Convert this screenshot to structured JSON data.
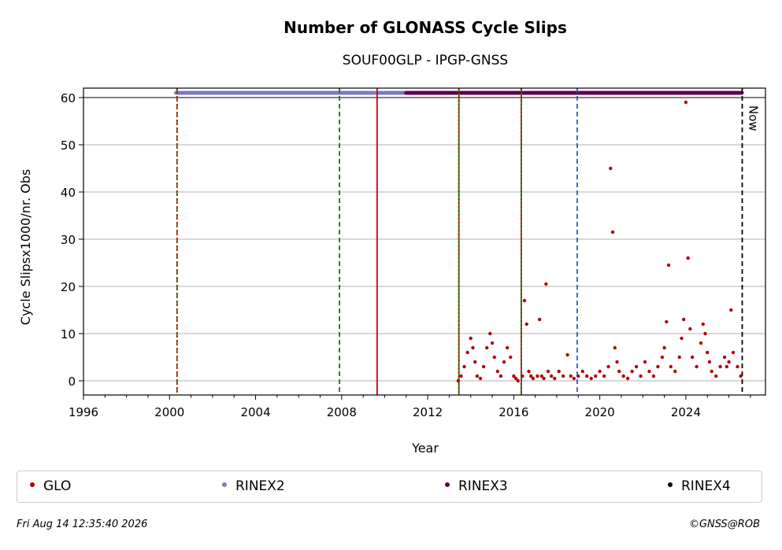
{
  "chart_data": {
    "type": "scatter",
    "title": "Number of GLONASS Cycle Slips",
    "subtitle": "SOUF00GLP - IPGP-GNSS",
    "xlabel": "Year",
    "ylabel": "Cycle Slipsx1000/nr. Obs",
    "xlim": [
      1996,
      2027.7
    ],
    "ylim": [
      -3,
      62
    ],
    "xticks": [
      1996,
      2000,
      2004,
      2008,
      2012,
      2016,
      2020,
      2024
    ],
    "yticks": [
      0,
      10,
      20,
      30,
      40,
      50,
      60
    ],
    "grid": "horizontal",
    "legend_placement": "bottom",
    "series": [
      {
        "name": "GLO",
        "color": "#b30000",
        "x": [
          2013.42,
          2013.55,
          2013.7,
          2013.85,
          2014.0,
          2014.1,
          2014.2,
          2014.3,
          2014.45,
          2014.6,
          2014.75,
          2014.9,
          2015.0,
          2015.1,
          2015.25,
          2015.4,
          2015.55,
          2015.7,
          2015.85,
          2016.0,
          2016.1,
          2016.2,
          2016.4,
          2016.5,
          2016.6,
          2016.7,
          2016.8,
          2016.9,
          2017.1,
          2017.2,
          2017.3,
          2017.4,
          2017.5,
          2017.6,
          2017.75,
          2017.9,
          2018.1,
          2018.3,
          2018.5,
          2018.65,
          2018.8,
          2019.0,
          2019.2,
          2019.4,
          2019.6,
          2019.8,
          2020.0,
          2020.2,
          2020.4,
          2020.5,
          2020.6,
          2020.7,
          2020.8,
          2020.9,
          2021.1,
          2021.3,
          2021.5,
          2021.7,
          2021.9,
          2022.1,
          2022.3,
          2022.5,
          2022.7,
          2022.9,
          2023.0,
          2023.1,
          2023.2,
          2023.3,
          2023.5,
          2023.7,
          2023.8,
          2023.9,
          2024.0,
          2024.1,
          2024.2,
          2024.3,
          2024.5,
          2024.7,
          2024.8,
          2024.9,
          2025.0,
          2025.1,
          2025.2,
          2025.4,
          2025.6,
          2025.8,
          2025.9,
          2026.0,
          2026.1,
          2026.2,
          2026.4,
          2026.55
        ],
        "y": [
          0,
          1,
          3,
          6,
          9,
          7,
          4,
          1,
          0.5,
          3,
          7,
          10,
          8,
          5,
          2,
          1,
          4,
          7,
          5,
          1,
          0.5,
          0,
          1,
          17,
          12,
          2,
          1,
          0.5,
          1,
          13,
          1,
          0.5,
          20.5,
          2,
          1,
          0.5,
          2,
          1,
          5.5,
          1,
          0.5,
          1,
          2,
          1,
          0.5,
          1,
          2,
          1,
          3,
          45,
          31.5,
          7,
          4,
          2,
          1,
          0.5,
          2,
          3,
          1,
          4,
          2,
          1,
          3,
          5,
          7,
          12.5,
          24.5,
          3,
          2,
          5,
          9,
          13,
          59,
          26,
          11,
          5,
          3,
          8,
          12,
          10,
          6,
          4,
          2,
          1,
          3,
          5,
          3,
          4,
          15,
          6,
          3,
          1
        ]
      },
      {
        "name": "RINEX2",
        "color": "#7b7bbf",
        "ranges": [
          [
            2000.3,
            2011.0
          ]
        ]
      },
      {
        "name": "RINEX3",
        "color": "#5e0050",
        "ranges": [
          [
            2011.0,
            2026.6
          ]
        ]
      },
      {
        "name": "RINEX4",
        "color": "#1a0010",
        "ranges": []
      }
    ],
    "vlines": [
      {
        "x": 2000.35,
        "color": "#008000",
        "style": "dashed"
      },
      {
        "x": 2000.35,
        "color": "#d00000",
        "style": "dotted"
      },
      {
        "x": 2007.9,
        "color": "#008000",
        "style": "dashed"
      },
      {
        "x": 2009.65,
        "color": "#d00000",
        "style": "solid"
      },
      {
        "x": 2013.45,
        "color": "#008000",
        "style": "solid"
      },
      {
        "x": 2013.45,
        "color": "#d00000",
        "style": "dotted"
      },
      {
        "x": 2016.35,
        "color": "#008000",
        "style": "solid"
      },
      {
        "x": 2016.35,
        "color": "#d00000",
        "style": "dotted"
      },
      {
        "x": 2018.95,
        "color": "#1f5fbf",
        "style": "dashed"
      },
      {
        "x": 2026.62,
        "color": "#000000",
        "style": "dashed"
      }
    ],
    "now_label": "Now"
  },
  "legend": {
    "items": [
      {
        "label": "GLO",
        "color": "#b30000"
      },
      {
        "label": "RINEX2",
        "color": "#7b7bbf"
      },
      {
        "label": "RINEX3",
        "color": "#5e0050"
      },
      {
        "label": "RINEX4",
        "color": "#1a0010"
      }
    ]
  },
  "footer": {
    "timestamp": "Fri Aug 14 12:35:40 2026",
    "copyright": "©GNSS@ROB"
  }
}
